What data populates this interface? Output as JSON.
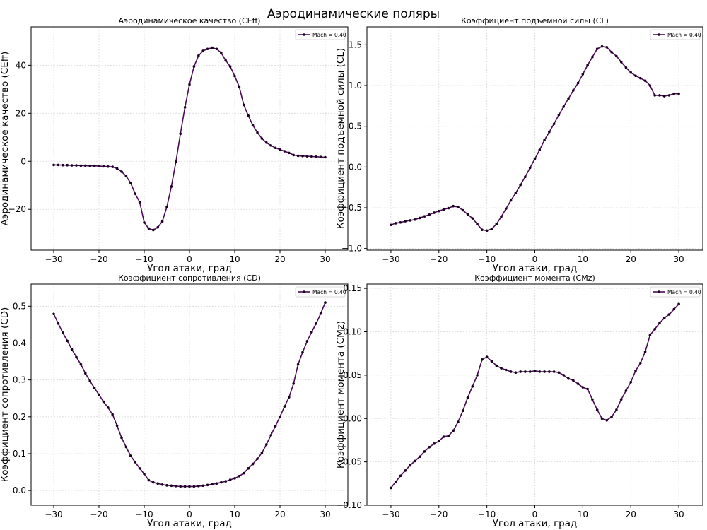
{
  "suptitle": "Аэродинамические поляры",
  "colors": {
    "line": "#4b0a57",
    "marker": "#1a0020",
    "grid": "#d9d9d9",
    "axis": "#000000"
  },
  "chart_data": [
    {
      "type": "line",
      "title": "Аэродинамическое качество (CEff)",
      "xlabel": "Угол атаки, град",
      "ylabel": "Аэродинамическое качество (CEff)",
      "xlim": [
        -35,
        35
      ],
      "ylim": [
        -37,
        56
      ],
      "xticks": [
        -30,
        -20,
        -10,
        0,
        10,
        20,
        30
      ],
      "yticks": [
        -20,
        0,
        20,
        40
      ],
      "grid": true,
      "legend_position": "top-right",
      "series": [
        {
          "name": "Mach = 0.40",
          "x": [
            -30,
            -29,
            -28,
            -27,
            -26,
            -25,
            -24,
            -23,
            -22,
            -21,
            -20,
            -19,
            -18,
            -17,
            -16,
            -15,
            -14,
            -13,
            -12,
            -11,
            -10,
            -9,
            -8,
            -7,
            -6,
            -5,
            -4,
            -3,
            -2,
            -1,
            0,
            1,
            2,
            3,
            4,
            5,
            6,
            7,
            8,
            9,
            10,
            11,
            12,
            13,
            14,
            15,
            16,
            17,
            18,
            19,
            20,
            21,
            22,
            23,
            24,
            25,
            26,
            27,
            28,
            29,
            30
          ],
          "y": [
            -1.5,
            -1.5,
            -1.6,
            -1.6,
            -1.7,
            -1.7,
            -1.8,
            -1.8,
            -1.9,
            -1.9,
            -2.0,
            -2.1,
            -2.2,
            -2.3,
            -3.0,
            -4.3,
            -6.2,
            -9.0,
            -13.5,
            -17.0,
            -25.5,
            -28.0,
            -28.6,
            -27.5,
            -25.0,
            -19.0,
            -10.5,
            -0.2,
            11.5,
            22.5,
            32.0,
            39.5,
            44.0,
            46.0,
            46.8,
            47.3,
            46.8,
            45.2,
            42.0,
            39.5,
            35.5,
            31.0,
            23.5,
            19.0,
            15.0,
            12.0,
            9.5,
            7.8,
            6.6,
            5.6,
            4.9,
            4.2,
            3.5,
            2.6,
            2.3,
            2.2,
            2.1,
            2.0,
            1.9,
            1.8,
            1.7
          ]
        }
      ]
    },
    {
      "type": "line",
      "title": "Коэффициент подъемной силы (CL)",
      "xlabel": "Угол атаки, град",
      "ylabel": "Коэффициент подъемной силы (CL)",
      "xlim": [
        -35,
        35
      ],
      "ylim": [
        -1.02,
        1.72
      ],
      "xticks": [
        -30,
        -20,
        -10,
        0,
        10,
        20,
        30
      ],
      "yticks": [
        -1.0,
        -0.5,
        0.0,
        0.5,
        1.0,
        1.5
      ],
      "grid": true,
      "legend_position": "top-right",
      "series": [
        {
          "name": "Mach = 0.40",
          "x": [
            -30,
            -29,
            -28,
            -27,
            -26,
            -25,
            -24,
            -23,
            -22,
            -21,
            -20,
            -19,
            -18,
            -17,
            -16,
            -15,
            -14,
            -13,
            -12,
            -11,
            -10,
            -9,
            -8,
            -7,
            -6,
            -5,
            -4,
            -3,
            -2,
            -1,
            0,
            1,
            2,
            3,
            4,
            5,
            6,
            7,
            8,
            9,
            10,
            11,
            12,
            13,
            14,
            15,
            16,
            17,
            18,
            19,
            20,
            21,
            22,
            23,
            24,
            25,
            26,
            27,
            28,
            29,
            30
          ],
          "y": [
            -0.71,
            -0.69,
            -0.68,
            -0.665,
            -0.655,
            -0.645,
            -0.625,
            -0.605,
            -0.585,
            -0.56,
            -0.54,
            -0.52,
            -0.505,
            -0.48,
            -0.49,
            -0.53,
            -0.58,
            -0.63,
            -0.7,
            -0.77,
            -0.78,
            -0.76,
            -0.7,
            -0.61,
            -0.51,
            -0.41,
            -0.32,
            -0.22,
            -0.12,
            -0.01,
            0.1,
            0.21,
            0.33,
            0.43,
            0.53,
            0.64,
            0.74,
            0.84,
            0.94,
            1.03,
            1.14,
            1.25,
            1.35,
            1.45,
            1.48,
            1.47,
            1.41,
            1.36,
            1.29,
            1.22,
            1.16,
            1.12,
            1.09,
            1.06,
            1.0,
            0.88,
            0.88,
            0.87,
            0.88,
            0.9,
            0.9
          ]
        }
      ]
    },
    {
      "type": "line",
      "title": "Коэффициент сопротивления (CD)",
      "xlabel": "Угол атаки, град",
      "ylabel": "Коэффициент сопротивления (CD)",
      "xlim": [
        -35,
        35
      ],
      "ylim": [
        -0.04,
        0.56
      ],
      "xticks": [
        -30,
        -20,
        -10,
        0,
        10,
        20,
        30
      ],
      "yticks": [
        0.0,
        0.1,
        0.2,
        0.3,
        0.4,
        0.5
      ],
      "grid": true,
      "legend_position": "top-right",
      "series": [
        {
          "name": "Mach = 0.40",
          "x": [
            -30,
            -29,
            -28,
            -27,
            -26,
            -25,
            -24,
            -23,
            -22,
            -21,
            -20,
            -19,
            -18,
            -17,
            -16,
            -15,
            -14,
            -13,
            -12,
            -11,
            -10,
            -9,
            -8,
            -7,
            -6,
            -5,
            -4,
            -3,
            -2,
            -1,
            0,
            1,
            2,
            3,
            4,
            5,
            6,
            7,
            8,
            9,
            10,
            11,
            12,
            13,
            14,
            15,
            16,
            17,
            18,
            19,
            20,
            21,
            22,
            23,
            24,
            25,
            26,
            27,
            28,
            29,
            30
          ],
          "y": [
            0.479,
            0.453,
            0.428,
            0.406,
            0.383,
            0.362,
            0.342,
            0.318,
            0.297,
            0.278,
            0.26,
            0.241,
            0.225,
            0.206,
            0.176,
            0.143,
            0.118,
            0.094,
            0.077,
            0.06,
            0.045,
            0.028,
            0.022,
            0.019,
            0.016,
            0.014,
            0.013,
            0.012,
            0.011,
            0.011,
            0.011,
            0.011,
            0.012,
            0.013,
            0.015,
            0.017,
            0.019,
            0.022,
            0.025,
            0.029,
            0.033,
            0.039,
            0.047,
            0.06,
            0.072,
            0.086,
            0.102,
            0.125,
            0.15,
            0.175,
            0.2,
            0.228,
            0.253,
            0.29,
            0.342,
            0.375,
            0.405,
            0.43,
            0.453,
            0.48,
            0.51
          ]
        }
      ]
    },
    {
      "type": "line",
      "title": "Коэффициент момента (CMz)",
      "xlabel": "Угол атаки, град",
      "ylabel": "Коэффициент момента (CMz)",
      "xlim": [
        -35,
        35
      ],
      "ylim": [
        -0.1,
        0.155
      ],
      "xticks": [
        -30,
        -20,
        -10,
        0,
        10,
        20,
        30
      ],
      "yticks": [
        -0.1,
        -0.05,
        0.0,
        0.05,
        0.1,
        0.15
      ],
      "grid": true,
      "legend_position": "top-right",
      "series": [
        {
          "name": "Mach = 0.40",
          "x": [
            -30,
            -29,
            -28,
            -27,
            -26,
            -25,
            -24,
            -23,
            -22,
            -21,
            -20,
            -19,
            -18,
            -17,
            -16,
            -15,
            -14,
            -13,
            -12,
            -11,
            -10,
            -9,
            -8,
            -7,
            -6,
            -5,
            -4,
            -3,
            -2,
            -1,
            0,
            1,
            2,
            3,
            4,
            5,
            6,
            7,
            8,
            9,
            10,
            11,
            12,
            13,
            14,
            15,
            16,
            17,
            18,
            19,
            20,
            21,
            22,
            23,
            24,
            25,
            26,
            27,
            28,
            29,
            30
          ],
          "y": [
            -0.08,
            -0.073,
            -0.066,
            -0.06,
            -0.054,
            -0.049,
            -0.044,
            -0.038,
            -0.033,
            -0.029,
            -0.026,
            -0.021,
            -0.02,
            -0.014,
            -0.004,
            0.009,
            0.024,
            0.037,
            0.05,
            0.068,
            0.071,
            0.066,
            0.061,
            0.058,
            0.056,
            0.054,
            0.053,
            0.054,
            0.054,
            0.054,
            0.055,
            0.054,
            0.054,
            0.054,
            0.054,
            0.053,
            0.05,
            0.046,
            0.044,
            0.04,
            0.036,
            0.034,
            0.022,
            0.01,
            0.0,
            -0.002,
            0.002,
            0.01,
            0.022,
            0.032,
            0.042,
            0.055,
            0.064,
            0.077,
            0.096,
            0.103,
            0.11,
            0.116,
            0.12,
            0.126,
            0.132
          ]
        }
      ]
    }
  ]
}
